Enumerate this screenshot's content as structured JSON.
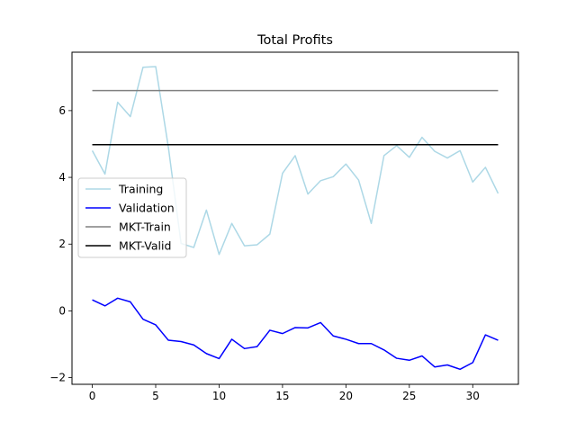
{
  "chart_data": {
    "type": "line",
    "title": "Total Profits",
    "xlabel": "",
    "ylabel": "",
    "xlim": [
      -1.6,
      33.6
    ],
    "ylim": [
      -2.2,
      7.75
    ],
    "xticks": [
      0,
      5,
      10,
      15,
      20,
      25,
      30
    ],
    "yticks": [
      -2,
      0,
      2,
      4,
      6
    ],
    "grid": false,
    "legend": {
      "position": "center-left",
      "entries": [
        "Training",
        "Validation",
        "MKT-Train",
        "MKT-Valid"
      ]
    },
    "x": [
      0,
      1,
      2,
      3,
      4,
      5,
      6,
      7,
      8,
      9,
      10,
      11,
      12,
      13,
      14,
      15,
      16,
      17,
      18,
      19,
      20,
      21,
      22,
      23,
      24,
      25,
      26,
      27,
      28,
      29,
      30,
      31,
      32
    ],
    "series": [
      {
        "name": "Training",
        "color": "#add8e6",
        "values": [
          4.8,
          4.1,
          6.25,
          5.82,
          7.3,
          7.32,
          4.9,
          2.02,
          1.9,
          3.02,
          1.69,
          2.62,
          1.95,
          1.98,
          2.3,
          4.12,
          4.65,
          3.5,
          3.9,
          4.02,
          4.4,
          3.92,
          2.62,
          4.65,
          4.95,
          4.6,
          5.2,
          4.78,
          4.58,
          4.8,
          3.86,
          4.3,
          3.52
        ]
      },
      {
        "name": "Validation",
        "color": "#0000ff",
        "values": [
          0.33,
          0.15,
          0.38,
          0.27,
          -0.25,
          -0.42,
          -0.88,
          -0.92,
          -1.02,
          -1.28,
          -1.43,
          -0.85,
          -1.13,
          -1.07,
          -0.58,
          -0.68,
          -0.5,
          -0.51,
          -0.35,
          -0.75,
          -0.85,
          -0.98,
          -0.98,
          -1.17,
          -1.42,
          -1.48,
          -1.35,
          -1.68,
          -1.62,
          -1.75,
          -1.55,
          -0.72,
          -0.88
        ]
      },
      {
        "name": "MKT-Train",
        "color": "#808080",
        "values": [
          6.6,
          6.6,
          6.6,
          6.6,
          6.6,
          6.6,
          6.6,
          6.6,
          6.6,
          6.6,
          6.6,
          6.6,
          6.6,
          6.6,
          6.6,
          6.6,
          6.6,
          6.6,
          6.6,
          6.6,
          6.6,
          6.6,
          6.6,
          6.6,
          6.6,
          6.6,
          6.6,
          6.6,
          6.6,
          6.6,
          6.6,
          6.6,
          6.6
        ]
      },
      {
        "name": "MKT-Valid",
        "color": "#000000",
        "values": [
          4.98,
          4.98,
          4.98,
          4.98,
          4.98,
          4.98,
          4.98,
          4.98,
          4.98,
          4.98,
          4.98,
          4.98,
          4.98,
          4.98,
          4.98,
          4.98,
          4.98,
          4.98,
          4.98,
          4.98,
          4.98,
          4.98,
          4.98,
          4.98,
          4.98,
          4.98,
          4.98,
          4.98,
          4.98,
          4.98,
          4.98,
          4.98,
          4.98
        ]
      }
    ]
  }
}
